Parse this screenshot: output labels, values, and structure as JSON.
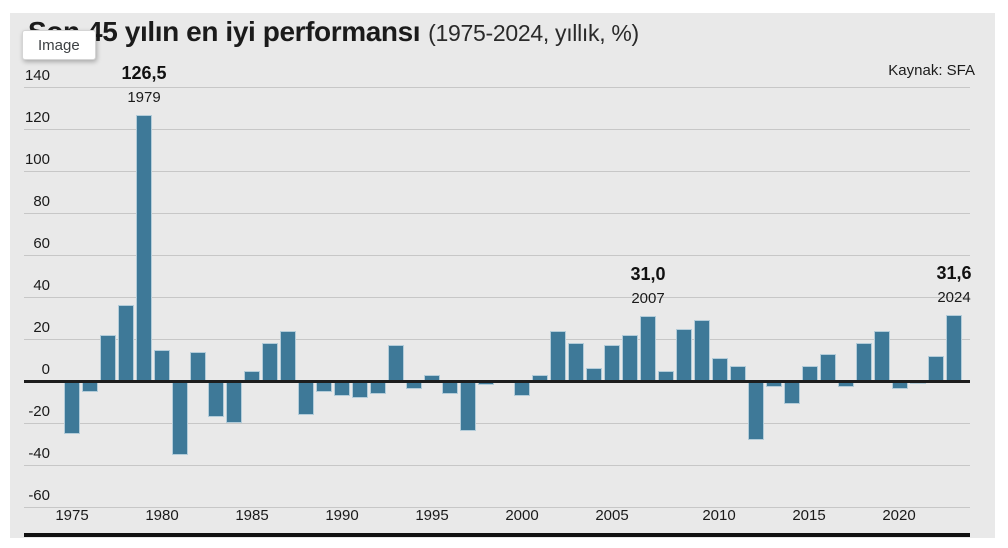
{
  "badge": {
    "label": "Image"
  },
  "header": {
    "title": "Son 45 yılın en iyi performansı",
    "subtitle": "(1975-2024, yıllık, %)",
    "source": "Kaynak: SFA"
  },
  "chart_data": {
    "type": "bar",
    "title": "Son 45 yılın en iyi performansı",
    "subtitle": "(1975-2024, yıllık, %)",
    "source": "Kaynak: SFA",
    "unit": "%",
    "x": [
      1975,
      1976,
      1977,
      1978,
      1979,
      1980,
      1981,
      1982,
      1983,
      1984,
      1985,
      1986,
      1987,
      1988,
      1989,
      1990,
      1991,
      1992,
      1993,
      1994,
      1995,
      1996,
      1997,
      1998,
      1999,
      2000,
      2001,
      2002,
      2003,
      2004,
      2005,
      2006,
      2007,
      2008,
      2009,
      2010,
      2011,
      2012,
      2013,
      2014,
      2015,
      2016,
      2017,
      2018,
      2019,
      2020,
      2021,
      2022,
      2023,
      2024
    ],
    "values": [
      -25,
      -5,
      22,
      36,
      126.5,
      15,
      -35,
      14,
      -17,
      -20,
      5,
      18,
      24,
      -16,
      -5,
      -7,
      -8,
      -6,
      17,
      -4,
      3,
      -6,
      -24,
      -2,
      -1,
      -7,
      3,
      24,
      18,
      6,
      17,
      22,
      31.0,
      5,
      25,
      29,
      11,
      7,
      -28,
      -3,
      -11,
      7,
      13,
      -3,
      18,
      24,
      -4,
      -1.5,
      12,
      31.6
    ],
    "ylim": [
      -60,
      140
    ],
    "yticks": [
      140,
      120,
      100,
      80,
      60,
      40,
      20,
      0,
      -20,
      -40,
      -60
    ],
    "xticks": [
      1975,
      1980,
      1985,
      1990,
      1995,
      2000,
      2005,
      2010,
      2015,
      2020
    ],
    "annotations": [
      {
        "year": 1979,
        "value_label": "126,5",
        "year_label": "1979"
      },
      {
        "year": 2007,
        "value_label": "31,0",
        "year_label": "2007"
      },
      {
        "year": 2024,
        "value_label": "31,6",
        "year_label": "2024"
      }
    ],
    "grid": true,
    "legend": false,
    "bar_color": "#3e7998",
    "grid_color": "#c7c7c7",
    "zero_line_color": "#1d1d1d",
    "background": "#e9e9e9",
    "text_color": "#1a1a1a"
  }
}
